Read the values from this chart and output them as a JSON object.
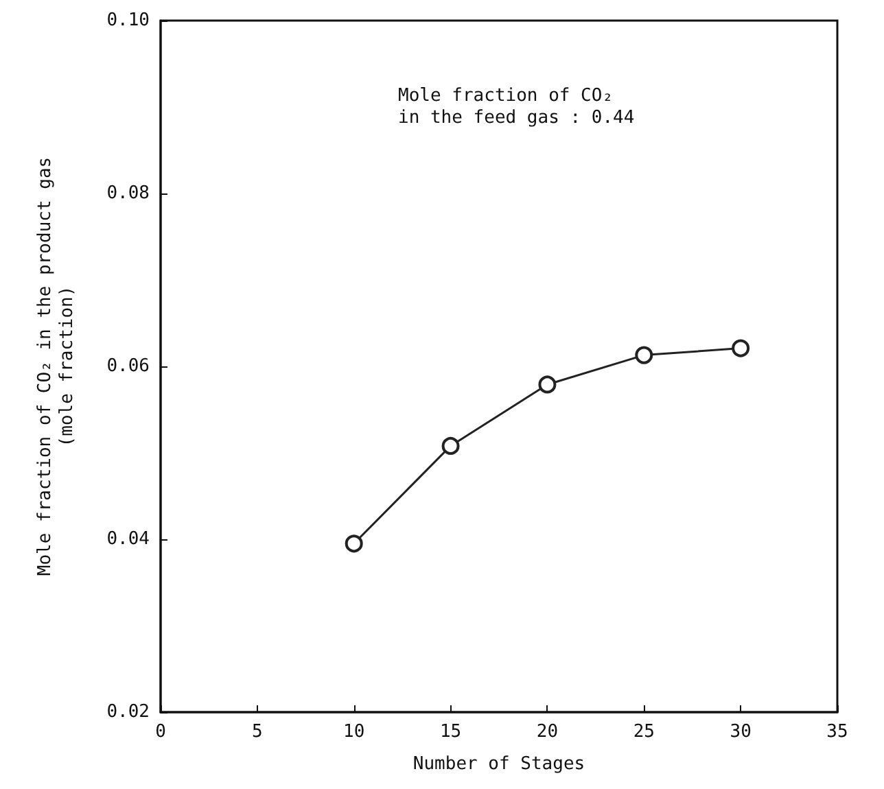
{
  "chart_data": {
    "type": "line",
    "xlabel": "Number of Stages",
    "ylabel": "Mole fraction of CO₂ in the product gas\n(mole fraction)",
    "annotations": [
      "Mole fraction of CO₂\nin the feed gas : 0.44"
    ],
    "x": [
      10,
      15,
      20,
      25,
      30
    ],
    "series": [
      {
        "color": "#222222",
        "values": [
          0.0395,
          0.0508,
          0.0579,
          0.0613,
          0.0621
        ]
      }
    ],
    "xlim": [
      0,
      35
    ],
    "xticks": [
      0,
      5,
      10,
      15,
      20,
      25,
      30,
      35
    ],
    "ylim": [
      0.02,
      0.1
    ],
    "yticks": [
      {
        "value": 0.02,
        "label": "0.02"
      },
      {
        "value": 0.04,
        "label": "0.04"
      },
      {
        "value": 0.06,
        "label": "0.06"
      },
      {
        "value": 0.08,
        "label": "0.08"
      },
      {
        "value": 0.1,
        "label": "0.10"
      }
    ],
    "grid": false,
    "marker": "circle",
    "line_style": "solid"
  }
}
